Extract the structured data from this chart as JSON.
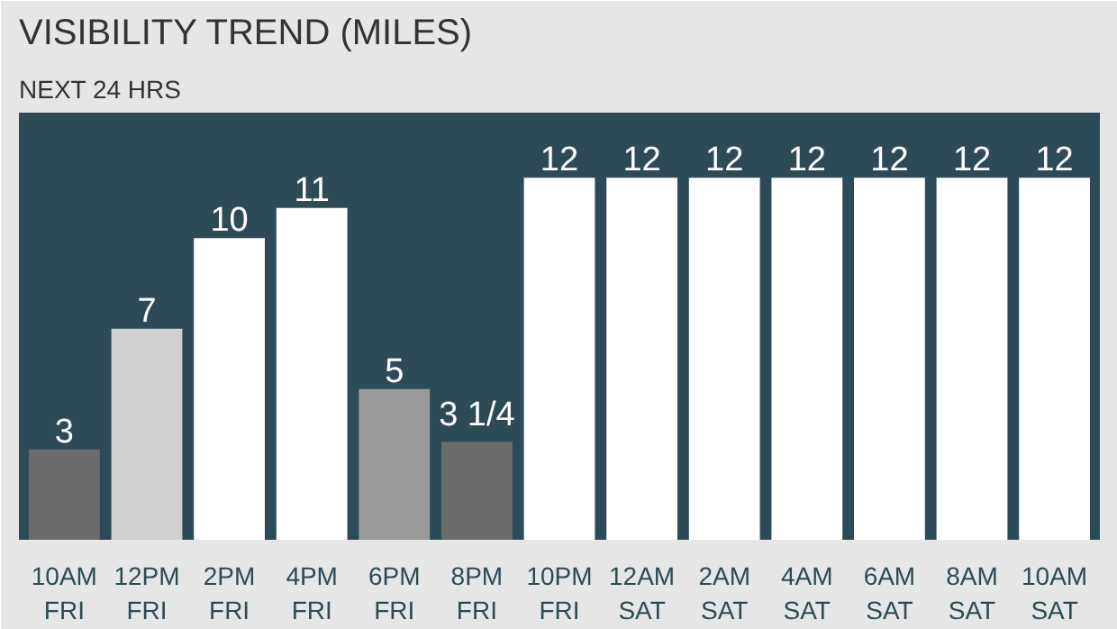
{
  "chart_data": {
    "type": "bar",
    "title": "VISIBILITY TREND (MILES)",
    "subtitle": "NEXT 24 HRS",
    "categories": [
      "10AM FRI",
      "12PM FRI",
      "2PM FRI",
      "4PM FRI",
      "6PM FRI",
      "8PM FRI",
      "10PM FRI",
      "12AM SAT",
      "2AM SAT",
      "4AM SAT",
      "6AM SAT",
      "8AM SAT",
      "10AM SAT"
    ],
    "values": [
      3,
      7,
      10,
      11,
      5,
      3.25,
      12,
      12,
      12,
      12,
      12,
      12,
      12
    ],
    "value_labels": [
      "3",
      "7",
      "10",
      "11",
      "5",
      "3 1/4",
      "12",
      "12",
      "12",
      "12",
      "12",
      "12",
      "12"
    ],
    "colors": [
      "#6b6b6b",
      "#d0d0d0",
      "#ffffff",
      "#ffffff",
      "#9a9a9a",
      "#6b6b6b",
      "#ffffff",
      "#ffffff",
      "#ffffff",
      "#ffffff",
      "#ffffff",
      "#ffffff",
      "#ffffff"
    ],
    "grid": false
  }
}
